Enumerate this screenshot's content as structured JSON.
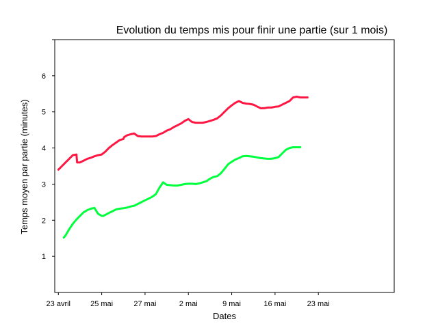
{
  "chart_data": {
    "type": "line",
    "title": "Evolution du temps mis pour finir une partie  (sur 1 mois)",
    "xlabel": "Dates",
    "ylabel": "Temps moyen par partie (minutes)",
    "xlim": [
      -1,
      93
    ],
    "ylim": [
      0,
      7
    ],
    "x_ticks": [
      {
        "pos": 0,
        "label": "23 avril"
      },
      {
        "pos": 12,
        "label": "25 mai"
      },
      {
        "pos": 24,
        "label": "27 mai"
      },
      {
        "pos": 36,
        "label": "2 mai"
      },
      {
        "pos": 48,
        "label": "9 mai"
      },
      {
        "pos": 60,
        "label": "16 mai"
      },
      {
        "pos": 72,
        "label": "23 mai"
      }
    ],
    "y_ticks": [
      1,
      2,
      3,
      4,
      5,
      6
    ],
    "grid": false,
    "legend": false,
    "series": [
      {
        "color": "#ff1744",
        "x": [
          0,
          1,
          2,
          3,
          4,
          5,
          5.2,
          6,
          7,
          8,
          9,
          10,
          11,
          12,
          13,
          14,
          15,
          16,
          17,
          18,
          18.2,
          19,
          20,
          21,
          22,
          23,
          24,
          25,
          26,
          27,
          28,
          29,
          30,
          31,
          32,
          33,
          34,
          35,
          36,
          37,
          38,
          39,
          40,
          41,
          42,
          43,
          44,
          45,
          46,
          47,
          48,
          49,
          50,
          51,
          52,
          53,
          54,
          55,
          56,
          57,
          58,
          59,
          60,
          61,
          62,
          63,
          64,
          65,
          66,
          67,
          68,
          69
        ],
        "y": [
          3.4,
          3.5,
          3.6,
          3.7,
          3.8,
          3.82,
          3.6,
          3.6,
          3.65,
          3.7,
          3.73,
          3.77,
          3.8,
          3.82,
          3.9,
          4.0,
          4.08,
          4.15,
          4.22,
          4.25,
          4.3,
          4.35,
          4.38,
          4.4,
          4.33,
          4.32,
          4.32,
          4.32,
          4.32,
          4.33,
          4.38,
          4.42,
          4.48,
          4.52,
          4.58,
          4.63,
          4.68,
          4.75,
          4.8,
          4.72,
          4.7,
          4.7,
          4.7,
          4.72,
          4.75,
          4.78,
          4.82,
          4.9,
          5.0,
          5.1,
          5.18,
          5.25,
          5.3,
          5.25,
          5.23,
          5.22,
          5.2,
          5.15,
          5.1,
          5.1,
          5.12,
          5.12,
          5.14,
          5.15,
          5.2,
          5.25,
          5.3,
          5.4,
          5.42,
          5.4,
          5.4,
          5.4
        ]
      },
      {
        "color": "#00ff3c",
        "x": [
          1.5,
          2,
          3,
          4,
          5,
          6,
          7,
          8,
          9,
          10,
          11,
          12,
          12.5,
          13,
          14,
          15,
          16,
          17,
          18,
          19,
          20,
          21,
          22,
          23,
          24,
          25,
          26,
          27,
          28,
          29,
          30,
          31,
          32,
          33,
          34,
          35,
          36,
          37,
          38,
          39,
          40,
          41,
          42,
          43,
          44,
          45,
          46,
          47,
          48,
          49,
          50,
          51,
          52,
          53,
          54,
          55,
          56,
          57,
          58,
          59,
          60,
          61,
          62,
          63,
          64,
          65,
          66,
          67
        ],
        "y": [
          1.52,
          1.58,
          1.75,
          1.9,
          2.02,
          2.12,
          2.22,
          2.28,
          2.32,
          2.34,
          2.18,
          2.12,
          2.12,
          2.15,
          2.2,
          2.25,
          2.3,
          2.32,
          2.33,
          2.35,
          2.38,
          2.4,
          2.45,
          2.5,
          2.55,
          2.6,
          2.65,
          2.72,
          2.9,
          3.05,
          2.98,
          2.97,
          2.96,
          2.96,
          2.98,
          3.0,
          3.01,
          3.01,
          3.0,
          3.02,
          3.05,
          3.08,
          3.15,
          3.2,
          3.22,
          3.3,
          3.42,
          3.55,
          3.62,
          3.68,
          3.72,
          3.77,
          3.78,
          3.77,
          3.76,
          3.74,
          3.72,
          3.71,
          3.7,
          3.7,
          3.72,
          3.75,
          3.85,
          3.95,
          4.0,
          4.02,
          4.02,
          4.02
        ]
      }
    ]
  }
}
